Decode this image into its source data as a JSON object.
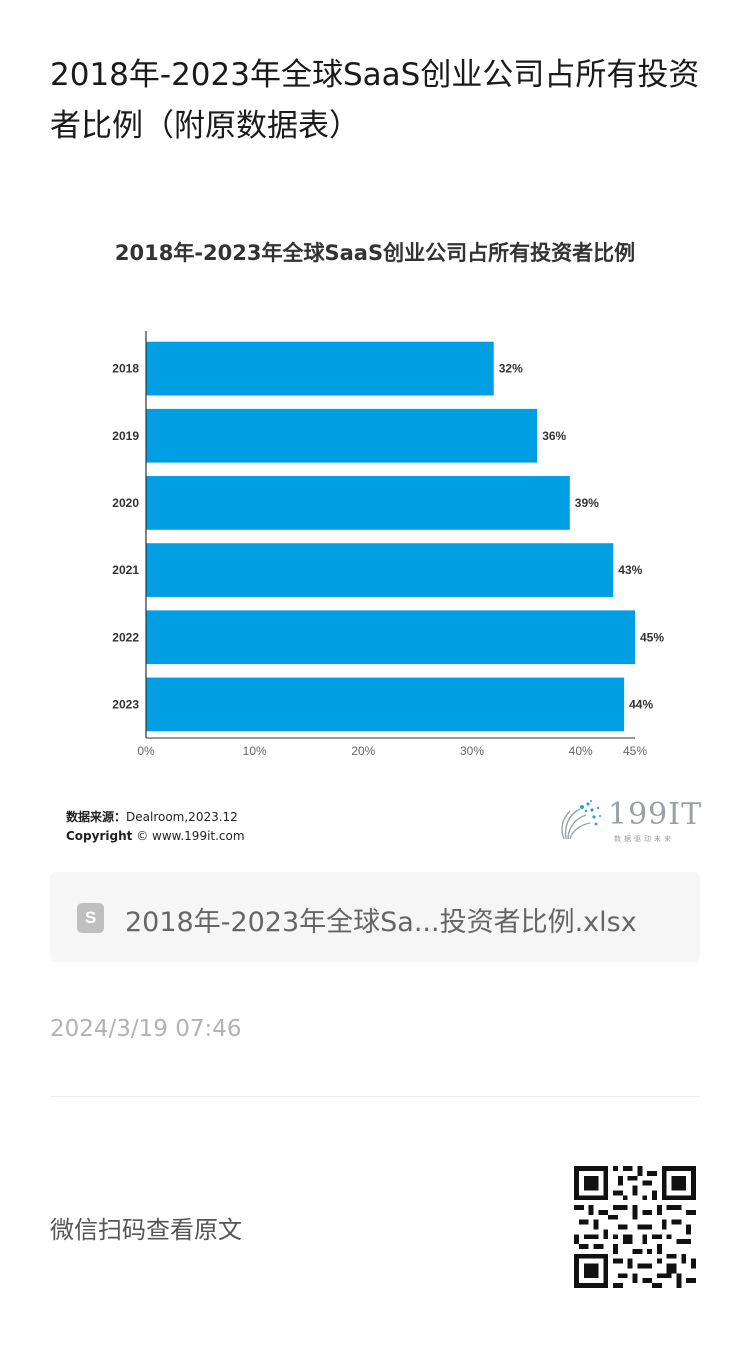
{
  "article": {
    "title": "2018年-2023年全球SaaS创业公司占所有投资者比例（附原数据表）"
  },
  "chart_data": {
    "type": "bar",
    "orientation": "horizontal",
    "title": "2018年-2023年全球SaaS创业公司占所有投资者比例",
    "categories": [
      "2018",
      "2019",
      "2020",
      "2021",
      "2022",
      "2023"
    ],
    "values": [
      32,
      36,
      39,
      43,
      45,
      44
    ],
    "value_labels": [
      "32%",
      "36%",
      "39%",
      "43%",
      "45%",
      "44%"
    ],
    "xlim": [
      0,
      45
    ],
    "x_ticks": [
      0,
      10,
      20,
      30,
      40,
      45
    ],
    "x_tick_labels": [
      "0%",
      "10%",
      "20%",
      "30%",
      "40%",
      "45%"
    ],
    "bar_color": "#009fe3",
    "grid": false
  },
  "source": {
    "label": "数据来源：",
    "value": "Dealroom,2023.12",
    "copyright_label": "Copyright",
    "copyright_value": "© www.199it.com"
  },
  "logo": {
    "text": "199IT",
    "tagline": "数据驱动未来"
  },
  "attachment": {
    "icon_letter": "S",
    "file_name": "2018年-2023年全球Sa...投资者比例.xlsx"
  },
  "meta": {
    "timestamp": "2024/3/19 07:46",
    "qr_prompt": "微信扫码查看原文"
  }
}
